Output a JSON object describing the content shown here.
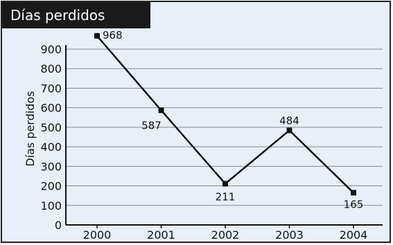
{
  "chart_data": {
    "type": "line",
    "title": "Días perdidos",
    "xlabel": "",
    "ylabel": "Días perdidos",
    "categories": [
      "2000",
      "2001",
      "2002",
      "2003",
      "2004"
    ],
    "values": [
      968,
      587,
      211,
      484,
      165
    ],
    "data_labels": [
      "968",
      "587",
      "211",
      "484",
      "165"
    ],
    "ylim": [
      0,
      900
    ],
    "y_ticks": [
      0,
      100,
      200,
      300,
      400,
      500,
      600,
      700,
      800,
      900
    ],
    "grid": "horizontal",
    "legend": "none",
    "colors": {
      "background": "#e8eff9",
      "line": "#111111",
      "grid": "#8a8a8a",
      "title_bg": "#1a1a1a",
      "title_text": "#ffffff"
    }
  }
}
